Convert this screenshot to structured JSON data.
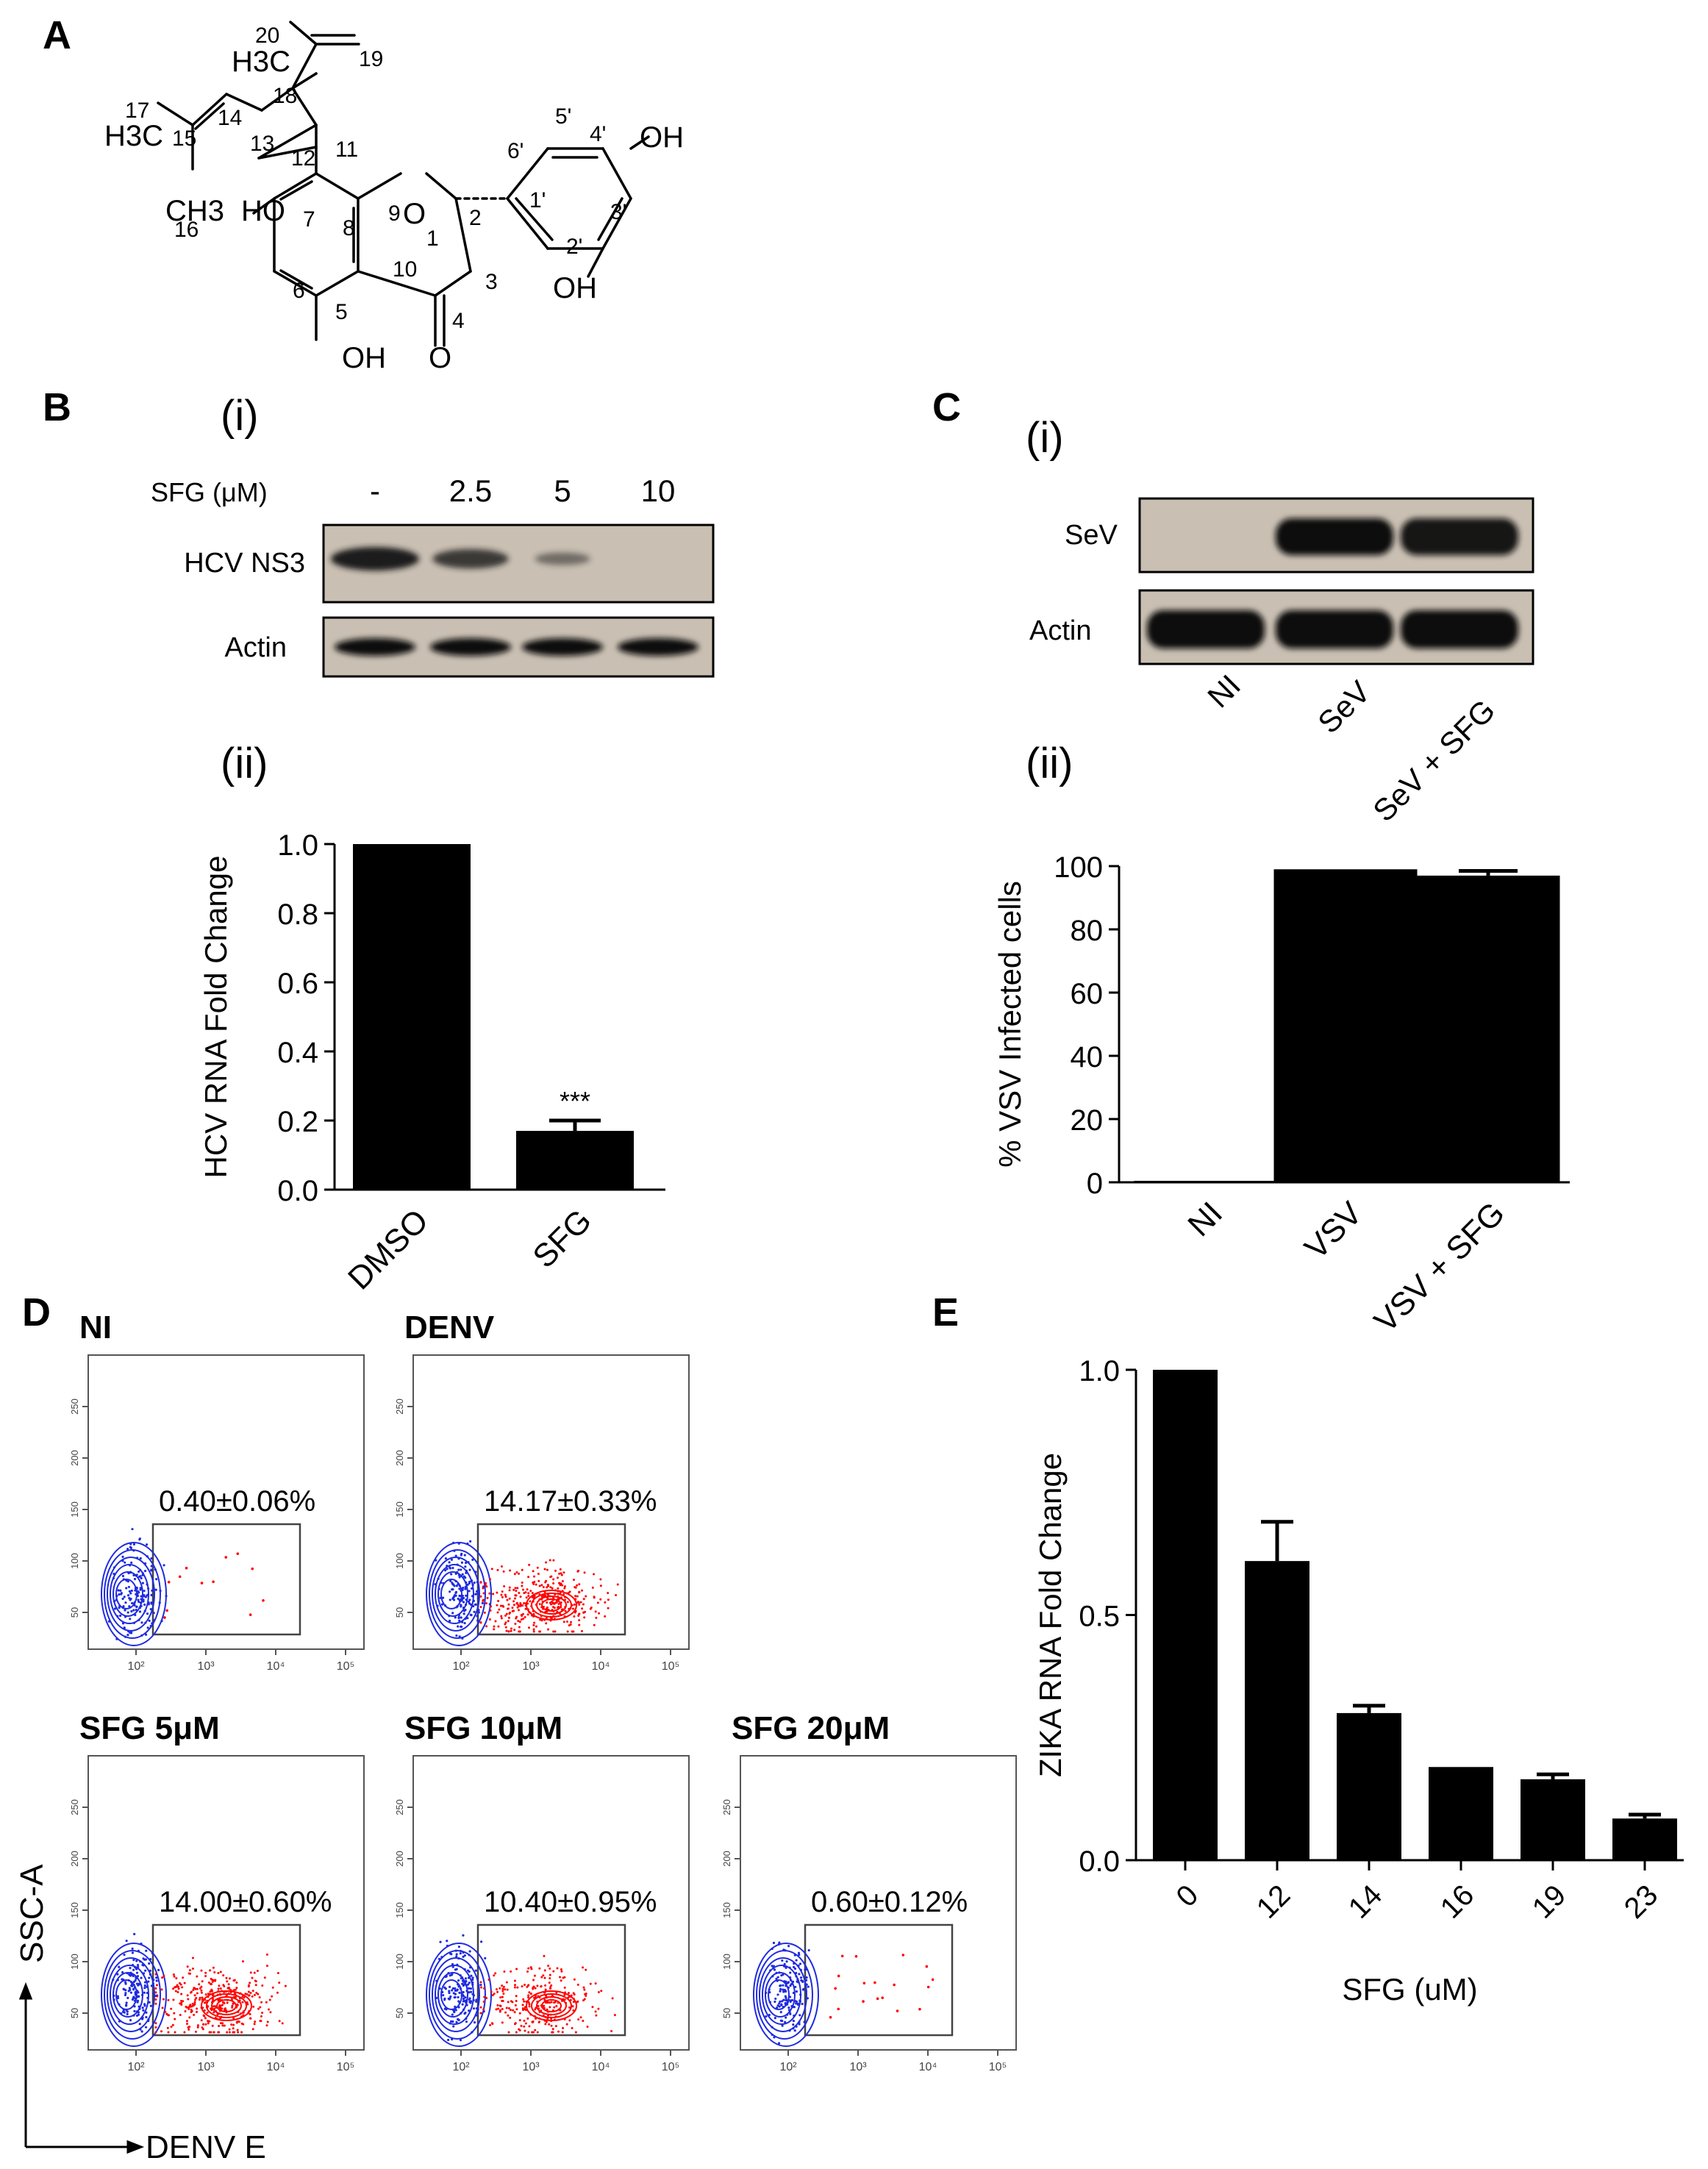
{
  "colors": {
    "ink": "#000000",
    "blot_bg": "#c9bfb2",
    "flow_blue": "#1f2be0",
    "flow_red": "#ff0000"
  },
  "panel_letters": {
    "a": "A",
    "b": "B",
    "c": "C",
    "d": "D",
    "e": "E"
  },
  "molecule": {
    "atom_numbers": [
      "20",
      "19",
      "18",
      "17",
      "15",
      "14",
      "13",
      "12",
      "11",
      "16",
      "7",
      "8",
      "9",
      "1",
      "2",
      "6",
      "10",
      "3",
      "5",
      "4",
      "5'",
      "4'",
      "6'",
      "1'",
      "3'",
      "2'"
    ],
    "groups": {
      "h3c_top": "H3C",
      "h3c_left": "H3C",
      "ch3": "CH3",
      "oh_7": "HO",
      "oh_5": "OH",
      "oh_4p": "OH",
      "oh_2p": "OH",
      "o_ring": "O",
      "o_keto": "O"
    }
  },
  "panel_b": {
    "sub_i": "(i)",
    "sub_ii": "(ii)",
    "blot": {
      "header_label": "SFG (μM)",
      "lanes": [
        "-",
        "2.5",
        "5",
        "10"
      ],
      "rows": [
        "HCV NS3",
        "Actin"
      ],
      "ns3_relative_intensity": [
        1.0,
        0.72,
        0.25,
        0.0
      ],
      "actin_relative_intensity": [
        1.0,
        1.0,
        1.0,
        1.0
      ]
    }
  },
  "panel_c": {
    "sub_i": "(i)",
    "sub_ii": "(ii)",
    "blot": {
      "lanes": [
        "NI",
        "SeV",
        "SeV + SFG"
      ],
      "rows": [
        "SeV",
        "Actin"
      ],
      "sev_relative_intensity": [
        0.0,
        1.0,
        0.95
      ],
      "actin_relative_intensity": [
        1.0,
        1.0,
        1.0
      ]
    }
  },
  "panel_d": {
    "x_axis_label": "DENV E",
    "y_axis_label": "SSC-A",
    "x_ticks": [
      "10²",
      "10³",
      "10⁴",
      "10⁵"
    ],
    "y_ticks": [
      "50",
      "100",
      "150",
      "200",
      "250"
    ],
    "plots": [
      {
        "title": "NI",
        "gate_text": "0.40±0.06%",
        "positive_fraction": 0.004
      },
      {
        "title": "DENV",
        "gate_text": "14.17±0.33%",
        "positive_fraction": 0.1417
      },
      {
        "title": "SFG 5μM",
        "gate_text": "14.00±0.60%",
        "positive_fraction": 0.14
      },
      {
        "title": "SFG 10μM",
        "gate_text": "10.40±0.95%",
        "positive_fraction": 0.104
      },
      {
        "title": "SFG 20μM",
        "gate_text": "0.60±0.12%",
        "positive_fraction": 0.006
      }
    ]
  },
  "chart_data": [
    {
      "id": "B(ii)",
      "type": "bar",
      "categories": [
        "DMSO",
        "SFG"
      ],
      "values": [
        1.0,
        0.17
      ],
      "errors": [
        0.0,
        0.03
      ],
      "annotations": [
        "",
        "***"
      ],
      "title": "",
      "xlabel": "",
      "ylabel": "HCV RNA Fold  Change",
      "ylim": [
        0,
        1.0
      ],
      "yticks": [
        "0.0",
        "0.2",
        "0.4",
        "0.6",
        "0.8",
        "1.0"
      ],
      "grid": false,
      "legend": "none"
    },
    {
      "id": "C(ii)",
      "type": "bar",
      "categories": [
        "NI",
        "VSV",
        "VSV + SFG"
      ],
      "values": [
        0,
        99,
        97
      ],
      "errors": [
        0,
        0,
        1.5
      ],
      "title": "",
      "xlabel": "",
      "ylabel": "% VSV Infected  cells",
      "ylim": [
        0,
        100
      ],
      "yticks": [
        "0",
        "20",
        "40",
        "60",
        "80",
        "100"
      ],
      "grid": false,
      "legend": "none"
    },
    {
      "id": "E",
      "type": "bar",
      "categories": [
        "0",
        "12",
        "14",
        "16",
        "19",
        "23"
      ],
      "values": [
        1.0,
        0.61,
        0.3,
        0.19,
        0.165,
        0.085
      ],
      "errors": [
        0.0,
        0.08,
        0.015,
        0.0,
        0.01,
        0.008
      ],
      "title": "",
      "xlabel": "SFG (uM)",
      "ylabel": "ZIKA RNA Fold Change",
      "ylim": [
        0,
        1.0
      ],
      "yticks": [
        "0.0",
        "0.5",
        "1.0"
      ],
      "grid": false,
      "legend": "none"
    }
  ]
}
